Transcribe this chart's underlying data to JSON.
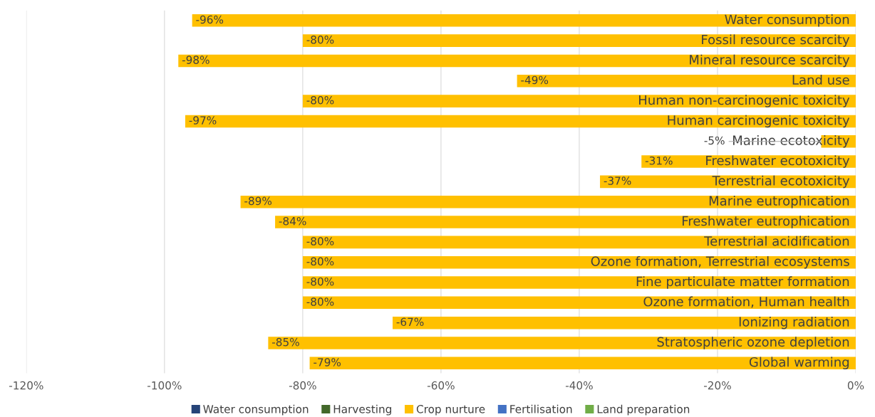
{
  "chart_data": {
    "type": "bar",
    "orientation": "horizontal",
    "categories": [
      "Water consumption",
      "Fossil resource scarcity",
      "Mineral resource scarcity",
      "Land use",
      "Human non-carcinogenic toxicity",
      "Human carcinogenic toxicity",
      "Marine ecotoxicity",
      "Freshwater ecotoxicity",
      "Terrestrial ecotoxicity",
      "Marine eutrophication",
      "Freshwater eutrophication",
      "Terrestrial acidification",
      "Ozone formation, Terrestrial ecosystems",
      "Fine particulate matter formation",
      "Ozone formation, Human health",
      "Ionizing radiation",
      "Stratospheric ozone depletion",
      "Global warming"
    ],
    "series": [
      {
        "name": "Water consumption",
        "color": "#264478",
        "values": [
          0,
          0,
          0,
          0,
          0,
          0,
          0,
          0,
          0,
          0,
          0,
          0,
          0,
          0,
          0,
          0,
          0,
          0
        ]
      },
      {
        "name": "Harvesting",
        "color": "#43682b",
        "values": [
          0,
          0,
          0,
          0,
          0,
          0,
          0,
          0,
          0,
          0,
          0,
          0,
          0,
          0,
          0,
          0,
          0,
          0
        ]
      },
      {
        "name": "Crop nurture",
        "color": "#ffc000",
        "values": [
          -96,
          -80,
          -98,
          -49,
          -80,
          -97,
          -5,
          -31,
          -37,
          -89,
          -84,
          -80,
          -80,
          -80,
          -80,
          -67,
          -85,
          -79
        ],
        "value_labels": [
          "-96%",
          "-80%",
          "-98%",
          "-49%",
          "-80%",
          "-97%",
          "-5%",
          "-31%",
          "-37%",
          "-89%",
          "-84%",
          "-80%",
          "-80%",
          "-80%",
          "-80%",
          "-67%",
          "-85%",
          "-79%"
        ]
      },
      {
        "name": "Fertilisation",
        "color": "#4472c4",
        "values": [
          0,
          0,
          0,
          0,
          0,
          0,
          0,
          0,
          0,
          0,
          0,
          0,
          0,
          0,
          0,
          0,
          0,
          0
        ]
      },
      {
        "name": "Land preparation",
        "color": "#70ad47",
        "values": [
          0,
          0,
          0,
          0,
          0,
          0,
          0,
          0,
          0,
          0,
          0,
          0,
          0,
          0,
          0,
          0,
          0,
          0
        ]
      }
    ],
    "xlim": [
      -120,
      0
    ],
    "xticks": [
      {
        "value": -120,
        "label": "-120%"
      },
      {
        "value": -100,
        "label": "-100%"
      },
      {
        "value": -80,
        "label": "-80%"
      },
      {
        "value": -60,
        "label": "-60%"
      },
      {
        "value": -40,
        "label": "-40%"
      },
      {
        "value": -20,
        "label": "-20%"
      },
      {
        "value": 0,
        "label": "0%"
      }
    ],
    "grid": "x",
    "legend": "bottom"
  }
}
